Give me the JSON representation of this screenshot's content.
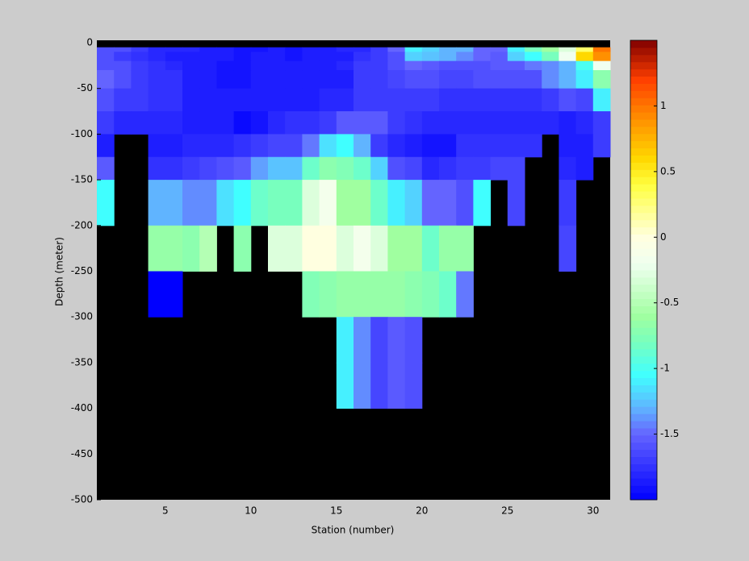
{
  "chart_data": {
    "type": "heatmap",
    "xlabel": "Station (number)",
    "ylabel": "Depth (meter)",
    "x_edges": [
      1,
      2,
      3,
      4,
      5,
      6,
      7,
      8,
      9,
      10,
      11,
      12,
      13,
      14,
      15,
      16,
      17,
      18,
      19,
      20,
      21,
      22,
      23,
      24,
      25,
      26,
      27,
      28,
      29,
      30,
      31
    ],
    "y_edges": [
      0,
      -5,
      -10,
      -20,
      -30,
      -50,
      -75,
      -100,
      -125,
      -150,
      -200,
      -250,
      -300,
      -350,
      -400,
      -500
    ],
    "values": [
      [
        null,
        null,
        null,
        null,
        null,
        null,
        null,
        null,
        null,
        null,
        null,
        null,
        null,
        null,
        null,
        null,
        null,
        null,
        null,
        null,
        null,
        null,
        null,
        null,
        null,
        null,
        null,
        null,
        null,
        null
      ],
      [
        -1.6,
        -1.6,
        -1.7,
        -1.8,
        -1.8,
        -1.8,
        -1.85,
        -1.85,
        -1.9,
        -1.9,
        -1.85,
        -1.9,
        -1.85,
        -1.85,
        -1.8,
        -1.8,
        -1.7,
        -1.5,
        -1.1,
        -1.2,
        -1.3,
        -1.3,
        -1.5,
        -1.5,
        -1.1,
        -0.8,
        -0.6,
        -0.3,
        0.3,
        1.0
      ],
      [
        -1.6,
        -1.7,
        -1.75,
        -1.8,
        -1.85,
        -1.85,
        -1.85,
        -1.85,
        -1.9,
        -1.85,
        -1.85,
        -1.9,
        -1.85,
        -1.85,
        -1.85,
        -1.75,
        -1.7,
        -1.6,
        -1.2,
        -1.25,
        -1.3,
        -1.4,
        -1.5,
        -1.55,
        -1.2,
        -1.05,
        -0.8,
        -0.2,
        0.6,
        0.9
      ],
      [
        -1.6,
        -1.6,
        -1.7,
        -1.75,
        -1.8,
        -1.85,
        -1.85,
        -1.9,
        -1.9,
        -1.85,
        -1.85,
        -1.85,
        -1.85,
        -1.85,
        -1.8,
        -1.7,
        -1.7,
        -1.6,
        -1.5,
        -1.55,
        -1.6,
        -1.6,
        -1.6,
        -1.55,
        -1.55,
        -1.45,
        -1.4,
        -1.3,
        -1.0,
        -0.2
      ],
      [
        -1.5,
        -1.6,
        -1.7,
        -1.75,
        -1.75,
        -1.85,
        -1.85,
        -1.9,
        -1.9,
        -1.85,
        -1.85,
        -1.85,
        -1.85,
        -1.85,
        -1.85,
        -1.7,
        -1.7,
        -1.65,
        -1.6,
        -1.6,
        -1.65,
        -1.65,
        -1.6,
        -1.6,
        -1.6,
        -1.6,
        -1.4,
        -1.3,
        -1.1,
        -0.7
      ],
      [
        -1.6,
        -1.7,
        -1.7,
        -1.75,
        -1.75,
        -1.85,
        -1.85,
        -1.85,
        -1.85,
        -1.85,
        -1.85,
        -1.85,
        -1.85,
        -1.8,
        -1.8,
        -1.7,
        -1.7,
        -1.7,
        -1.7,
        -1.7,
        -1.75,
        -1.75,
        -1.75,
        -1.75,
        -1.75,
        -1.75,
        -1.7,
        -1.6,
        -1.65,
        -1.1
      ],
      [
        -1.7,
        -1.8,
        -1.8,
        -1.8,
        -1.8,
        -1.85,
        -1.85,
        -1.85,
        -1.95,
        -1.9,
        -1.8,
        -1.75,
        -1.75,
        -1.7,
        -1.55,
        -1.55,
        -1.55,
        -1.7,
        -1.75,
        -1.8,
        -1.8,
        -1.8,
        -1.8,
        -1.8,
        -1.8,
        -1.8,
        -1.8,
        -1.85,
        -1.8,
        -1.7
      ],
      [
        -1.85,
        null,
        null,
        -1.85,
        -1.85,
        -1.8,
        -1.8,
        -1.8,
        -1.75,
        -1.7,
        -1.65,
        -1.65,
        -1.45,
        -1.15,
        -1.05,
        -1.3,
        -1.7,
        -1.8,
        -1.85,
        -1.9,
        -1.9,
        -1.75,
        -1.75,
        -1.75,
        -1.75,
        -1.75,
        null,
        -1.85,
        -1.85,
        -1.7
      ],
      [
        -1.55,
        null,
        null,
        -1.75,
        -1.75,
        -1.7,
        -1.65,
        -1.6,
        -1.55,
        -1.35,
        -1.25,
        -1.25,
        -0.85,
        -0.7,
        -0.75,
        -0.85,
        -1.2,
        -1.6,
        -1.65,
        -1.8,
        -1.75,
        -1.7,
        -1.7,
        -1.65,
        -1.65,
        null,
        null,
        -1.8,
        -1.85,
        null
      ],
      [
        -1.05,
        null,
        null,
        -1.3,
        -1.3,
        -1.4,
        -1.4,
        -1.15,
        -1.05,
        -0.85,
        -0.8,
        -0.8,
        -0.3,
        -0.15,
        -0.6,
        -0.6,
        -0.85,
        -1.1,
        -1.2,
        -1.5,
        -1.5,
        -1.6,
        -1.05,
        null,
        -1.65,
        null,
        null,
        -1.7,
        null,
        null
      ],
      [
        null,
        null,
        null,
        -0.65,
        -0.65,
        -0.7,
        -0.5,
        null,
        -0.7,
        null,
        -0.3,
        -0.3,
        0.0,
        0.0,
        -0.3,
        -0.15,
        -0.3,
        -0.6,
        -0.6,
        -0.85,
        -0.65,
        -0.65,
        null,
        null,
        null,
        null,
        null,
        -1.65,
        null,
        null
      ],
      [
        null,
        null,
        null,
        -2.0,
        -2.0,
        null,
        null,
        null,
        null,
        null,
        null,
        null,
        -0.75,
        -0.7,
        -0.65,
        -0.65,
        -0.65,
        -0.65,
        -0.7,
        -0.75,
        -0.85,
        -1.45,
        null,
        null,
        null,
        null,
        null,
        null,
        null,
        null
      ],
      [
        null,
        null,
        null,
        null,
        null,
        null,
        null,
        null,
        null,
        null,
        null,
        null,
        null,
        null,
        -1.1,
        -1.4,
        -1.65,
        -1.55,
        -1.6,
        null,
        null,
        null,
        null,
        null,
        null,
        null,
        null,
        null,
        null,
        null
      ],
      [
        null,
        null,
        null,
        null,
        null,
        null,
        null,
        null,
        null,
        null,
        null,
        null,
        null,
        null,
        -1.1,
        -1.4,
        -1.65,
        -1.55,
        -1.6,
        null,
        null,
        null,
        null,
        null,
        null,
        null,
        null,
        null,
        null,
        null
      ],
      [
        null,
        null,
        null,
        null,
        null,
        null,
        null,
        null,
        null,
        null,
        null,
        null,
        null,
        null,
        null,
        null,
        null,
        null,
        null,
        null,
        null,
        null,
        null,
        null,
        null,
        null,
        null,
        null,
        null,
        null
      ]
    ],
    "xlim": [
      1,
      31
    ],
    "ylim": [
      -500,
      0
    ],
    "xticks": [
      5,
      10,
      15,
      20,
      25,
      30
    ],
    "yticks": [
      0,
      -50,
      -100,
      -150,
      -200,
      -250,
      -300,
      -350,
      -400,
      -450,
      -500
    ],
    "clim": [
      -2,
      1.5
    ],
    "cticks": [
      1,
      0.5,
      0,
      -0.5,
      -1,
      -1.5
    ],
    "colormap": [
      {
        "value": -2.0,
        "color": "#0000ff"
      },
      {
        "value": -1.5,
        "color": "#6464ff"
      },
      {
        "value": -1.3,
        "color": "#60b4ff"
      },
      {
        "value": -1.05,
        "color": "#40ffff"
      },
      {
        "value": -0.8,
        "color": "#78ffbe"
      },
      {
        "value": -0.6,
        "color": "#a0ffa0"
      },
      {
        "value": -0.2,
        "color": "#f0fff0"
      },
      {
        "value": 0.0,
        "color": "#ffffe0"
      },
      {
        "value": 0.4,
        "color": "#ffff40"
      },
      {
        "value": 0.6,
        "color": "#ffd800"
      },
      {
        "value": 0.9,
        "color": "#ff9000"
      },
      {
        "value": 1.2,
        "color": "#ff4000"
      },
      {
        "value": 1.5,
        "color": "#800000"
      }
    ],
    "missing_color": "#000000"
  }
}
